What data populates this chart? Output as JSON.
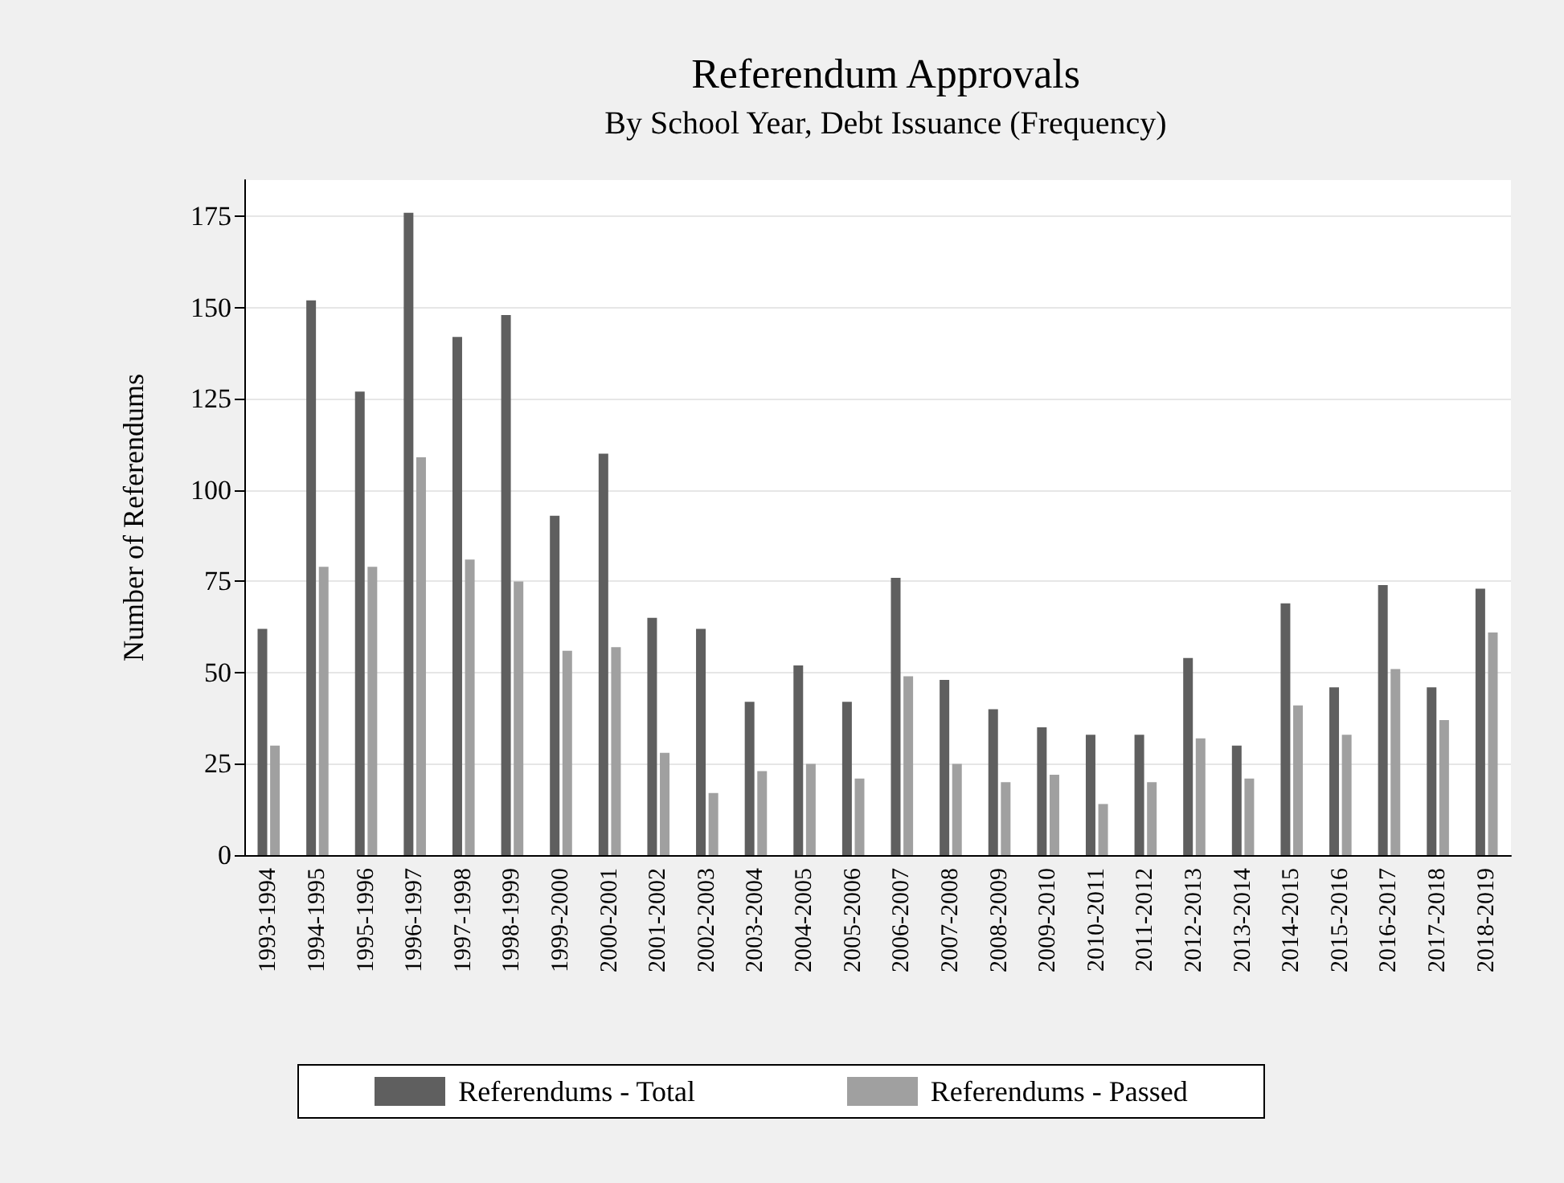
{
  "chart_data": {
    "type": "bar",
    "title": "Referendum Approvals",
    "subtitle": "By School Year, Debt Issuance (Frequency)",
    "ylabel": "Number of Referendums",
    "categories": [
      "1993-1994",
      "1994-1995",
      "1995-1996",
      "1996-1997",
      "1997-1998",
      "1998-1999",
      "1999-2000",
      "2000-2001",
      "2001-2002",
      "2002-2003",
      "2003-2004",
      "2004-2005",
      "2005-2006",
      "2006-2007",
      "2007-2008",
      "2008-2009",
      "2009-2010",
      "2010-2011",
      "2011-2012",
      "2012-2013",
      "2013-2014",
      "2014-2015",
      "2015-2016",
      "2016-2017",
      "2017-2018",
      "2018-2019"
    ],
    "series": [
      {
        "name": "Referendums - Total",
        "color": "#5f5f5f",
        "values": [
          62,
          152,
          127,
          176,
          142,
          148,
          93,
          110,
          65,
          62,
          42,
          52,
          42,
          76,
          48,
          40,
          35,
          33,
          33,
          54,
          30,
          69,
          46,
          74,
          46,
          73
        ]
      },
      {
        "name": "Referendums - Passed",
        "color": "#a0a0a0",
        "values": [
          30,
          79,
          79,
          109,
          81,
          75,
          56,
          57,
          28,
          17,
          23,
          25,
          21,
          49,
          25,
          20,
          22,
          14,
          20,
          32,
          21,
          41,
          33,
          51,
          37,
          61
        ]
      }
    ],
    "ylim": [
      0,
      185
    ],
    "yticks": [
      0,
      25,
      50,
      75,
      100,
      125,
      150,
      175
    ],
    "grid": "y",
    "legend": "bottom"
  }
}
